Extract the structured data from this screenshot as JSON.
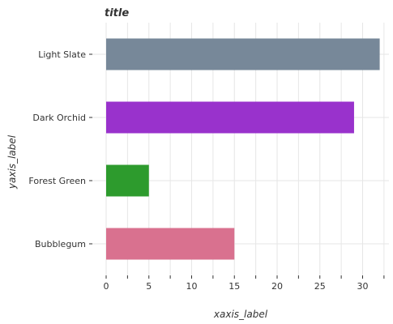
{
  "chart_data": {
    "type": "bar",
    "orientation": "horizontal",
    "title": "title",
    "xlabel": "xaxis_label",
    "ylabel": "yaxis_label",
    "categories": [
      "Bubblegum",
      "Forest Green",
      "Dark Orchid",
      "Light Slate"
    ],
    "values": [
      15,
      5,
      29,
      32
    ],
    "colors": [
      "#d9718f",
      "#2d9b2d",
      "#9932cc",
      "#778899"
    ],
    "xlim": [
      0,
      33
    ],
    "xticks": [
      0,
      5,
      10,
      15,
      20,
      25,
      30
    ],
    "grid": true,
    "legend": "none"
  }
}
